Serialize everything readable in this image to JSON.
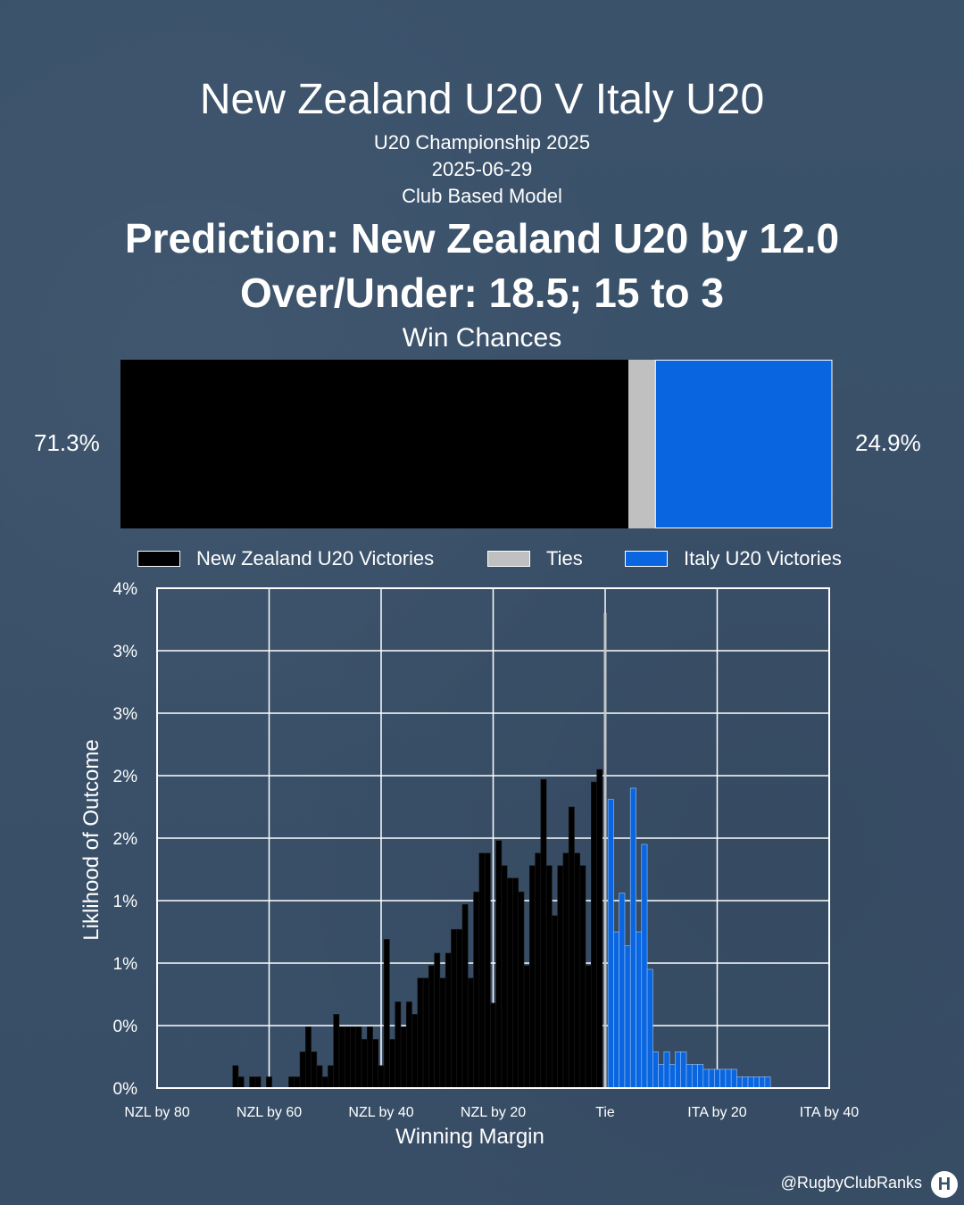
{
  "header": {
    "title": "New Zealand U20 V Italy U20",
    "competition": "U20 Championship 2025",
    "date": "2025-06-29",
    "model": "Club Based Model",
    "prediction": "Prediction: New Zealand U20 by 12.0",
    "over_under": "Over/Under: 18.5; 15 to 3"
  },
  "win_chances": {
    "title": "Win Chances",
    "home_pct_label": "71.3%",
    "away_pct_label": "24.9%",
    "home": 71.3,
    "tie": 3.8,
    "away": 24.9
  },
  "legend": {
    "home_label": "New Zealand U20 Victories",
    "tie_label": "Ties",
    "away_label": "Italy U20 Victories"
  },
  "colors": {
    "home": "#000000",
    "tie": "#c0c0c0",
    "away": "#0a66e0",
    "background": "#3a5068"
  },
  "chart_data": {
    "type": "bar",
    "xlabel": "Winning Margin",
    "ylabel": "Liklihood of Outcome",
    "xlim": [
      -80,
      40
    ],
    "ylim": [
      0,
      4
    ],
    "x_ticks": [
      -80,
      -60,
      -40,
      -20,
      0,
      20,
      40
    ],
    "x_tick_labels": [
      "NZL by 80",
      "NZL by 60",
      "NZL by 40",
      "NZL by 20",
      "Tie",
      "ITA by 20",
      "ITA by 40"
    ],
    "y_ticks": [
      0,
      0.5,
      1,
      1.5,
      2,
      2.5,
      3,
      3.5,
      4
    ],
    "y_tick_labels": [
      "0%",
      "0%",
      "1%",
      "1%",
      "2%",
      "2%",
      "3%",
      "3%",
      "4%"
    ],
    "grid": true,
    "series": [
      {
        "name": "New Zealand U20 Victories",
        "x": [
          -66,
          -65,
          -63,
          -62,
          -60,
          -56,
          -55,
          -54,
          -53,
          -52,
          -51,
          -50,
          -49,
          -48,
          -47,
          -46,
          -45,
          -44,
          -43,
          -42,
          -41,
          -40,
          -39,
          -38,
          -37,
          -36,
          -35,
          -34,
          -33,
          -32,
          -31,
          -30,
          -29,
          -28,
          -27,
          -26,
          -25,
          -24,
          -23,
          -22,
          -21,
          -20,
          -19,
          -18,
          -17,
          -16,
          -15,
          -14,
          -13,
          -12,
          -11,
          -10,
          -9,
          -8,
          -7,
          -6,
          -5,
          -4,
          -3,
          -2,
          -1
        ],
        "values": [
          0.18,
          0.09,
          0.09,
          0.09,
          0.09,
          0.09,
          0.09,
          0.29,
          0.49,
          0.29,
          0.18,
          0.09,
          0.18,
          0.59,
          0.49,
          0.49,
          0.49,
          0.49,
          0.39,
          0.49,
          0.39,
          0.18,
          1.19,
          0.39,
          0.69,
          0.49,
          0.69,
          0.59,
          0.88,
          0.88,
          0.98,
          1.08,
          0.88,
          1.08,
          1.27,
          1.27,
          1.47,
          0.88,
          1.57,
          1.88,
          1.88,
          0.68,
          1.98,
          1.78,
          1.68,
          1.68,
          1.57,
          0.98,
          1.78,
          1.88,
          2.47,
          1.78,
          1.38,
          1.78,
          1.88,
          2.25,
          1.88,
          1.78,
          0.98,
          2.45,
          2.55
        ],
        "color": "#000000"
      },
      {
        "name": "Ties",
        "x": [
          0
        ],
        "values": [
          3.8
        ],
        "color": "#c0c0c0"
      },
      {
        "name": "Italy U20 Victories",
        "x": [
          1,
          2,
          3,
          4,
          5,
          6,
          7,
          8,
          9,
          10,
          11,
          12,
          13,
          14,
          15,
          16,
          17,
          18,
          19,
          20,
          21,
          22,
          23,
          24,
          25,
          26,
          27,
          28,
          29
        ],
        "values": [
          2.31,
          1.25,
          1.56,
          1.14,
          2.4,
          1.25,
          1.95,
          0.95,
          0.29,
          0.19,
          0.29,
          0.19,
          0.29,
          0.29,
          0.19,
          0.19,
          0.19,
          0.15,
          0.15,
          0.15,
          0.15,
          0.15,
          0.15,
          0.09,
          0.09,
          0.09,
          0.09,
          0.09,
          0.09
        ],
        "color": "#0a66e0"
      }
    ]
  },
  "footer": {
    "handle": "@RugbyClubRanks",
    "logo_glyph": "H"
  }
}
